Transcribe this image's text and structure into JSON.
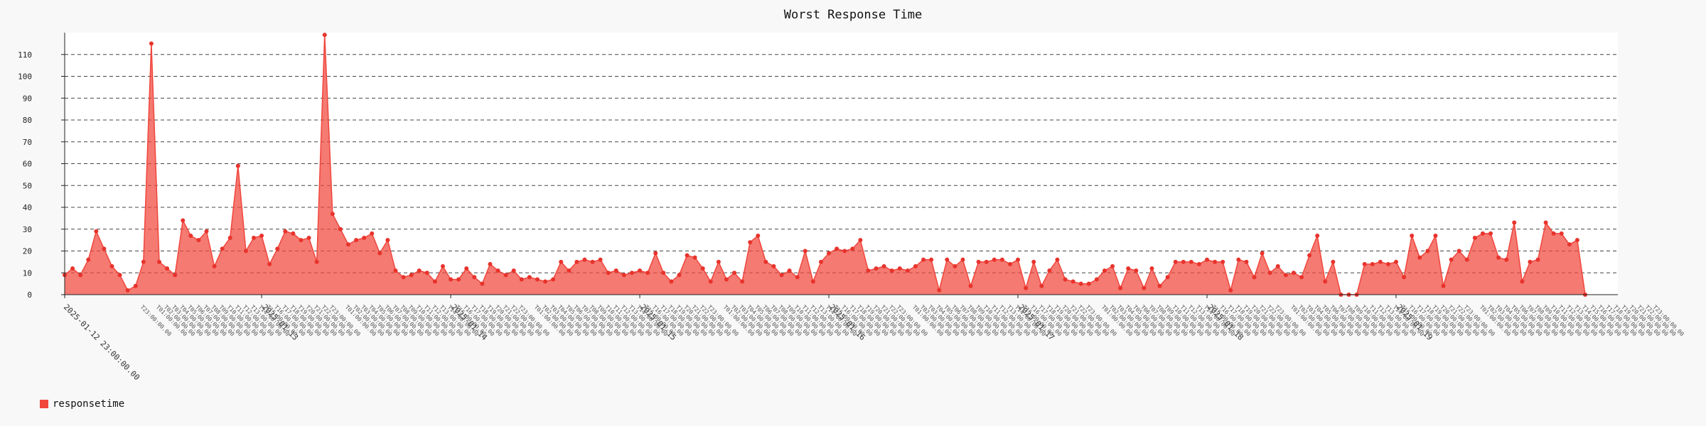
{
  "chart_data": {
    "type": "area",
    "title": "Worst Response Time",
    "xlabel": "",
    "ylabel": "",
    "ylim": [
      0,
      120
    ],
    "yticks": [
      0,
      10,
      20,
      30,
      40,
      50,
      60,
      70,
      80,
      90,
      100,
      110
    ],
    "grid": true,
    "grid_style": "dashed",
    "legend_position": "bottom-left",
    "color": "#f0463c",
    "first_label": "2025-01-12 23:00:00.00",
    "day_labels": [
      "2025-01-13",
      "2025-01-14",
      "2025-01-15",
      "2025-01-16",
      "2025-01-17",
      "2025-01-18",
      "2025-01-19"
    ],
    "hourly_label_prefix": "T00:00:00.00",
    "series": [
      {
        "name": "responsetime",
        "values": [
          9,
          12,
          9,
          16,
          29,
          21,
          13,
          9,
          2,
          4,
          15,
          115,
          15,
          12,
          9,
          34,
          27,
          25,
          29,
          13,
          21,
          26,
          59,
          20,
          26,
          27,
          14,
          21,
          29,
          28,
          25,
          26,
          15,
          119,
          37,
          30,
          23,
          25,
          26,
          28,
          19,
          25,
          11,
          8,
          9,
          11,
          10,
          6,
          13,
          7,
          7,
          12,
          8,
          5,
          14,
          11,
          9,
          11,
          7,
          8,
          7,
          6,
          7,
          15,
          11,
          15,
          16,
          15,
          16,
          10,
          11,
          9,
          10,
          11,
          10,
          19,
          10,
          6,
          9,
          18,
          17,
          12,
          6,
          15,
          7,
          10,
          6,
          24,
          27,
          15,
          13,
          9,
          11,
          8,
          20,
          6,
          15,
          19,
          21,
          20,
          21,
          25,
          11,
          12,
          13,
          11,
          12,
          11,
          13,
          16,
          16,
          2,
          16,
          13,
          16,
          4,
          15,
          15,
          16,
          16,
          14,
          16,
          3,
          15,
          4,
          11,
          16,
          7,
          6,
          5,
          5,
          7,
          11,
          13,
          3,
          12,
          11,
          3,
          12,
          4,
          8,
          15,
          15,
          15,
          14,
          16,
          15,
          15,
          2,
          16,
          15,
          8,
          19,
          10,
          13,
          9,
          10,
          8,
          18,
          27,
          6,
          15,
          0,
          0,
          0,
          14,
          14,
          15,
          14,
          15,
          8,
          27,
          17,
          20,
          27,
          4,
          16,
          20,
          16,
          26,
          28,
          28,
          17,
          16,
          33,
          6,
          15,
          16,
          33,
          28,
          28,
          23,
          25,
          0
        ]
      }
    ]
  }
}
